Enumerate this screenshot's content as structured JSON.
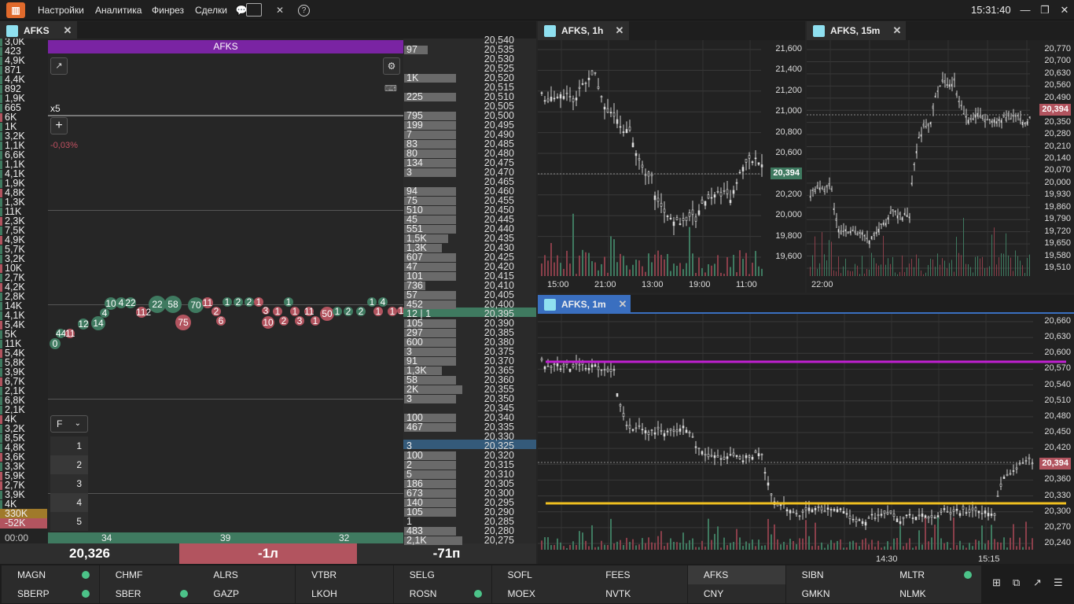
{
  "topbar": {
    "menu": [
      "Настройки",
      "Аналитика",
      "Финрез",
      "Сделки"
    ],
    "clock": "15:31:40",
    "icons": [
      "chat-icon",
      "pin-icon",
      "help-icon"
    ],
    "window": [
      "minimize-icon",
      "maximize-icon",
      "close-icon"
    ]
  },
  "left_tab": {
    "title": "AFKS"
  },
  "tabs": {
    "h1": "AFKS, 1h",
    "m15": "AFKS, 15m",
    "m1": "AFKS, 1m"
  },
  "tape": {
    "title": "AFKS",
    "multiplier": "x5",
    "change": "-0,03%",
    "plus": "+",
    "filter_label": "F",
    "filter_options": [
      "1",
      "2",
      "3",
      "4",
      "5"
    ],
    "bottom_counts": [
      "34",
      "39",
      "32"
    ]
  },
  "volumes": [
    "3,0K",
    "423",
    "4,9K",
    "871",
    "4,4K",
    "892",
    "1,9K",
    "665",
    "6K",
    "1K",
    "3,2K",
    "1,1K",
    "6,6K",
    "1,1K",
    "4,1K",
    "1,9K",
    "4,8K",
    "1,3K",
    "11K",
    "2,3K",
    "7,5K",
    "4,9K",
    "5,7K",
    "3,2K",
    "10K",
    "2,7K",
    "4,2K",
    "2,8K",
    "14K",
    "4,1K",
    "5,4K",
    "5K",
    "11K",
    "5,4K",
    "5,8K",
    "3,9K",
    "6,7K",
    "2,1K",
    "6,8K",
    "2,1K",
    "4K",
    "3,2K",
    "8,5K",
    "4,8K",
    "3,6K",
    "3,3K",
    "5,9K",
    "2,7K",
    "3,9K",
    "4K",
    "330K",
    "-52K"
  ],
  "time": "00:00",
  "book": {
    "prices": [
      "20,540",
      "20,535",
      "20,530",
      "20,525",
      "20,520",
      "20,515",
      "20,510",
      "20,505",
      "20,500",
      "20,495",
      "20,490",
      "20,485",
      "20,480",
      "20,475",
      "20,470",
      "20,465",
      "20,460",
      "20,455",
      "20,450",
      "20,445",
      "20,440",
      "20,435",
      "20,430",
      "20,425",
      "20,420",
      "20,415",
      "20,410",
      "20,405",
      "20,400",
      "20,395",
      "20,390",
      "20,385",
      "20,380",
      "20,375",
      "20,370",
      "20,365",
      "20,360",
      "20,355",
      "20,350",
      "20,345",
      "20,340",
      "20,335",
      "20,330",
      "20,325",
      "20,320",
      "20,315",
      "20,310",
      "20,305",
      "20,300",
      "20,295",
      "20,290",
      "20,285",
      "20,280",
      "20,275"
    ],
    "vols": [
      "",
      "97",
      "",
      "",
      "1K",
      "",
      "225",
      "",
      "795",
      "199",
      "7",
      "83",
      "80",
      "134",
      "3",
      "",
      "94",
      "75",
      "510",
      "45",
      "551",
      "1,5K",
      "1,3K",
      "607",
      "47",
      "101",
      "736",
      "57",
      "452",
      "12 | 1",
      "105",
      "297",
      "600",
      "3",
      "91",
      "1,3K",
      "58",
      "2K",
      "3",
      "",
      "100",
      "467",
      "",
      "3",
      "100",
      "2",
      "5",
      "186",
      "673",
      "140",
      "105",
      "1",
      "483",
      "2,1K"
    ]
  },
  "bottom": {
    "price": "20,326",
    "lots": "-1л",
    "pos": "-71п"
  },
  "chart_h1": {
    "y": [
      "21,600",
      "21,400",
      "21,200",
      "21,000",
      "20,800",
      "20,600",
      "20,394",
      "20,200",
      "20,000",
      "19,800",
      "19,600"
    ],
    "x": [
      "15:00",
      "21:00",
      "13:00",
      "19:00",
      "11:00"
    ],
    "last": "20,394"
  },
  "chart_m15": {
    "y": [
      "20,770",
      "20,700",
      "20,630",
      "20,560",
      "20,490",
      "20,394",
      "20,350",
      "20,280",
      "20,210",
      "20,140",
      "20,070",
      "20,000",
      "19,930",
      "19,860",
      "19,790",
      "19,720",
      "19,650",
      "19,580",
      "19,510"
    ],
    "x": [
      "22:00"
    ],
    "last": "20,394"
  },
  "chart_m1": {
    "y": [
      "20,660",
      "20,630",
      "20,600",
      "20,570",
      "20,540",
      "20,510",
      "20,480",
      "20,450",
      "20,420",
      "20,394",
      "20,360",
      "20,330",
      "20,300",
      "20,270",
      "20,240"
    ],
    "x": [
      "14:30",
      "15:15"
    ],
    "last": "20,394"
  },
  "watchlist": [
    [
      "MAGN",
      true
    ],
    [
      "CHMF",
      false
    ],
    [
      "ALRS",
      false
    ],
    [
      "VTBR",
      false
    ],
    [
      "SELG",
      false
    ],
    [
      "SOFL",
      false
    ],
    [
      "FEES",
      false
    ],
    [
      "AFKS",
      false
    ],
    [
      "SIBN",
      false
    ],
    [
      "MLTR",
      true
    ],
    [
      "SBERP",
      true
    ],
    [
      "SBER",
      true
    ],
    [
      "GAZP",
      false
    ],
    [
      "LKOH",
      false
    ],
    [
      "ROSN",
      true
    ],
    [
      "MOEX",
      false
    ],
    [
      "NVTK",
      false
    ],
    [
      "CNY",
      false
    ],
    [
      "GMKN",
      false
    ],
    [
      "NLMK",
      false
    ]
  ],
  "colors": {
    "green": "#3f7a60",
    "red": "#b2545f",
    "purple": "#c020d0",
    "yellow": "#f0c020"
  }
}
